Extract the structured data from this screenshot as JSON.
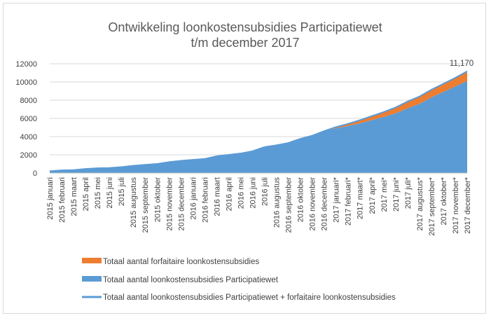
{
  "chart_data": {
    "type": "area",
    "title_lines": [
      "Ontwikkeling loonkostensubsidies Participatiewet",
      "t/m december 2017"
    ],
    "categories": [
      "2015 januari",
      "2015 februari",
      "2015 maart",
      "2015 april",
      "2015 mei",
      "2015 juni",
      "2015 juli",
      "2015 augustus",
      "2015 september",
      "2015 oktober",
      "2015 november",
      "2015 december",
      "2016 januari",
      "2016 februari",
      "2016 maart",
      "2016 april",
      "2016 mei",
      "2016 juni",
      "2016 juli",
      "2016 augustus",
      "2016 september",
      "2016 oktober",
      "2016 november",
      "2016 december",
      "2017 januari*",
      "2017 februari*",
      "2017 maart*",
      "2017 april*",
      "2017 mei*",
      "2017 juni*",
      "2017 juli*",
      "2017 augustus*",
      "2017 september*",
      "2017 oktober*",
      "2017 november*",
      "2017 december*"
    ],
    "series": [
      {
        "name": "Totaal aantal forfaitaire loonkostensubsidies",
        "color": "#ED7D31",
        "values": [
          0,
          0,
          0,
          0,
          0,
          0,
          0,
          0,
          0,
          0,
          0,
          0,
          0,
          0,
          0,
          0,
          0,
          0,
          0,
          0,
          0,
          0,
          0,
          0,
          150,
          250,
          350,
          450,
          550,
          650,
          750,
          800,
          850,
          900,
          950,
          1070
        ]
      },
      {
        "name": "Totaal aantal loonkostensubsidies Participatiewet",
        "color": "#5B9BD5",
        "values": [
          200,
          300,
          330,
          450,
          530,
          560,
          650,
          800,
          900,
          1000,
          1200,
          1350,
          1450,
          1550,
          1850,
          2000,
          2150,
          2400,
          2850,
          3050,
          3300,
          3750,
          4100,
          4600,
          4900,
          5150,
          5450,
          5800,
          6150,
          6550,
          7100,
          7600,
          8300,
          8900,
          9500,
          10100
        ]
      },
      {
        "name": "Totaal aantal loonkostensubsidies Participatiewet + forfaitaire loonkostensubsidies",
        "color": "#5B9BD5",
        "values": [
          200,
          300,
          330,
          450,
          530,
          560,
          650,
          800,
          900,
          1000,
          1200,
          1350,
          1450,
          1550,
          1850,
          2000,
          2150,
          2400,
          2850,
          3050,
          3300,
          3750,
          4100,
          4600,
          5050,
          5400,
          5800,
          6250,
          6700,
          7200,
          7850,
          8400,
          9150,
          9800,
          10450,
          11170
        ]
      }
    ],
    "ylim": [
      0,
      12000
    ],
    "y_ticks": [
      "0",
      "2000",
      "4000",
      "6000",
      "8000",
      "10000",
      "12000"
    ],
    "annotation": "11,170",
    "gridlines": true,
    "legend_position": "bottom"
  }
}
